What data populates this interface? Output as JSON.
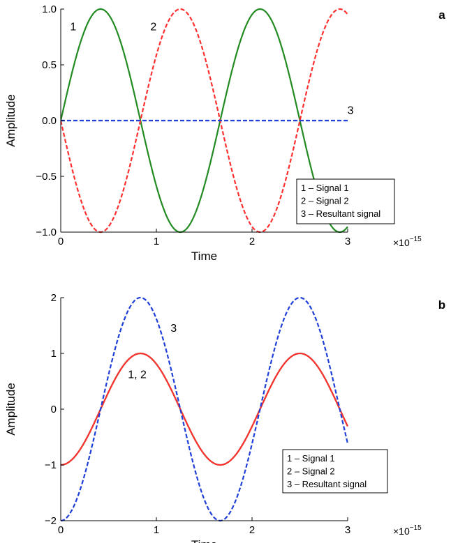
{
  "chart_data": [
    {
      "type": "line",
      "panel_label": "a",
      "title": "",
      "xlabel": "Time",
      "ylabel": "Amplitude",
      "xlim": [
        0,
        3
      ],
      "ylim": [
        -1,
        1
      ],
      "x_scale_exponent": {
        "base": "×10",
        "exp": "−15"
      },
      "xticks": [
        0,
        1,
        2,
        3
      ],
      "xtick_labels": [
        "0",
        "1",
        "2",
        "3"
      ],
      "yticks": [
        -1,
        -0.5,
        0,
        0.5,
        1
      ],
      "ytick_labels": [
        "−1.0",
        "−0.5",
        "0.0",
        "0.5",
        "1.0"
      ],
      "grid": false,
      "legend_position": "bottom-right",
      "legend": [
        "1 – Signal 1",
        "2 – Signal 2",
        "3 – Resultant signal"
      ],
      "annotations": [
        {
          "text": "1",
          "x": 0.13,
          "y": 0.84
        },
        {
          "text": "2",
          "x": 0.97,
          "y": 0.84
        },
        {
          "text": "3",
          "x": 3.03,
          "y": 0.09
        }
      ],
      "series": [
        {
          "id": "1",
          "color": "#228B22",
          "dash": "solid",
          "function": "sine",
          "amplitude": 1,
          "period": 1.667,
          "phase": 0,
          "offset": 0,
          "x_range": [
            0,
            3
          ]
        },
        {
          "id": "2",
          "color": "#FF3030",
          "dash": "dashed",
          "function": "sine",
          "amplitude": -1,
          "period": 1.667,
          "phase": 0,
          "offset": 0,
          "x_range": [
            0,
            3
          ]
        },
        {
          "id": "3",
          "color": "#1F3FD8",
          "dash": "dashed",
          "function": "constant",
          "amplitude": 0,
          "period": 1.667,
          "phase": 0,
          "offset": 0,
          "x_range": [
            0,
            3
          ]
        }
      ]
    },
    {
      "type": "line",
      "panel_label": "b",
      "title": "",
      "xlabel": "Time",
      "ylabel": "Amplitude",
      "xlim": [
        0,
        3
      ],
      "ylim": [
        -2,
        2
      ],
      "x_scale_exponent": {
        "base": "×10",
        "exp": "−15"
      },
      "xticks": [
        0,
        1,
        2,
        3
      ],
      "xtick_labels": [
        "0",
        "1",
        "2",
        "3"
      ],
      "yticks": [
        -2,
        -1,
        0,
        1,
        2
      ],
      "ytick_labels": [
        "−2",
        "−1",
        "0",
        "1",
        "2"
      ],
      "grid": false,
      "legend_position": "bottom-right",
      "legend": [
        "1 – Signal 1",
        "2 – Signal 2",
        "3 – Resultant signal"
      ],
      "annotations": [
        {
          "text": "3",
          "x": 1.18,
          "y": 1.45
        },
        {
          "text": "1, 2",
          "x": 0.8,
          "y": 0.62
        }
      ],
      "series": [
        {
          "id": "1",
          "color": "#228B22",
          "dash": "solid",
          "function": "neg-cosine",
          "amplitude": 1,
          "period": 1.667,
          "phase": 0,
          "offset": 0,
          "x_range": [
            0,
            3
          ]
        },
        {
          "id": "2",
          "color": "#FF3030",
          "dash": "solid",
          "function": "neg-cosine",
          "amplitude": 1,
          "period": 1.667,
          "phase": 0,
          "offset": 0,
          "x_range": [
            0,
            3
          ]
        },
        {
          "id": "3",
          "color": "#1F3FD8",
          "dash": "dashed",
          "function": "neg-cosine",
          "amplitude": 2,
          "period": 1.667,
          "phase": 0,
          "offset": 0,
          "x_range": [
            0,
            3
          ]
        }
      ]
    }
  ]
}
